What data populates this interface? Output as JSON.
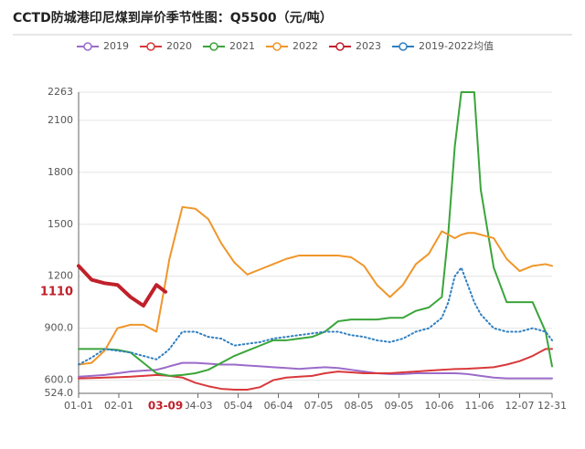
{
  "chart_data": {
    "type": "line",
    "title": "CCTD防城港印尼煤到岸价季节性图：Q5500（元/吨）",
    "x": [
      0,
      10,
      20,
      30,
      40,
      50,
      60,
      67,
      70,
      80,
      90,
      100,
      110,
      120,
      130,
      140,
      150,
      160,
      170,
      180,
      190,
      200,
      210,
      220,
      230,
      240,
      250,
      260,
      270,
      280,
      285,
      290,
      295,
      300,
      305,
      310,
      320,
      330,
      340,
      350,
      360,
      365
    ],
    "xlim": [
      0,
      365
    ],
    "xticks": [
      {
        "value": 0,
        "label": "01-01"
      },
      {
        "value": 31,
        "label": "02-01"
      },
      {
        "value": 92,
        "label": "04-03"
      },
      {
        "value": 123,
        "label": "05-04"
      },
      {
        "value": 154,
        "label": "06-04"
      },
      {
        "value": 185,
        "label": "07-05"
      },
      {
        "value": 216,
        "label": "08-05"
      },
      {
        "value": 247,
        "label": "09-05"
      },
      {
        "value": 278,
        "label": "10-06"
      },
      {
        "value": 309,
        "label": "11-06"
      },
      {
        "value": 340,
        "label": "12-07"
      },
      {
        "value": 365,
        "label": "12-31"
      }
    ],
    "ylim": [
      524,
      2263
    ],
    "yticks": [
      {
        "value": 524,
        "label": "524.0"
      },
      {
        "value": 600,
        "label": "600.0"
      },
      {
        "value": 900,
        "label": "900.0"
      },
      1200,
      1500,
      1800,
      2100,
      2263
    ],
    "grid": true,
    "legend": "top",
    "axis_pointer": {
      "x": {
        "value": 67,
        "label": "03-09"
      },
      "y": 1110,
      "color": "#c0202a"
    },
    "series": [
      {
        "name": "2019",
        "color": "#9b6bc9",
        "values": [
          620,
          625,
          630,
          640,
          650,
          655,
          660,
          673,
          680,
          700,
          700,
          695,
          690,
          690,
          685,
          680,
          675,
          670,
          665,
          670,
          675,
          670,
          660,
          650,
          640,
          635,
          635,
          640,
          640,
          640,
          640,
          640,
          638,
          635,
          630,
          625,
          615,
          610,
          610,
          610,
          610,
          610
        ]
      },
      {
        "name": "2020",
        "color": "#d9383a",
        "values": [
          610,
          612,
          615,
          617,
          620,
          625,
          630,
          627,
          625,
          615,
          585,
          565,
          550,
          545,
          545,
          560,
          600,
          615,
          620,
          625,
          640,
          650,
          645,
          640,
          640,
          640,
          645,
          650,
          655,
          660,
          662,
          664,
          665,
          666,
          668,
          670,
          675,
          690,
          710,
          740,
          780,
          780
        ]
      },
      {
        "name": "2021",
        "color": "#3aa53a",
        "values": [
          780,
          780,
          780,
          775,
          760,
          700,
          640,
          630,
          625,
          630,
          640,
          660,
          700,
          740,
          770,
          800,
          830,
          830,
          840,
          850,
          880,
          940,
          950,
          950,
          950,
          960,
          960,
          1000,
          1020,
          1080,
          1450,
          1950,
          2263,
          2263,
          2263,
          1700,
          1250,
          1050,
          1050,
          1050,
          880,
          680
        ]
      },
      {
        "name": "2022",
        "color": "#f0962a",
        "values": [
          690,
          700,
          770,
          900,
          920,
          920,
          880,
          1170,
          1300,
          1600,
          1590,
          1530,
          1390,
          1280,
          1210,
          1240,
          1270,
          1300,
          1320,
          1320,
          1320,
          1320,
          1310,
          1260,
          1150,
          1080,
          1150,
          1270,
          1330,
          1460,
          1440,
          1420,
          1440,
          1450,
          1450,
          1440,
          1420,
          1300,
          1230,
          1260,
          1270,
          1260
        ]
      },
      {
        "name": "2023",
        "color": "#c0202a",
        "line_width": 4,
        "values": [
          1260,
          1180,
          1160,
          1150,
          1080,
          1030,
          1150,
          1110,
          null,
          null,
          null,
          null,
          null,
          null,
          null,
          null,
          null,
          null,
          null,
          null,
          null,
          null,
          null,
          null,
          null,
          null,
          null,
          null,
          null,
          null,
          null,
          null,
          null,
          null,
          null,
          null,
          null,
          null,
          null,
          null,
          null,
          null
        ]
      },
      {
        "name": "2019-2022均值",
        "color": "#2f7fc1",
        "line_style": "dotted",
        "values": [
          690,
          730,
          780,
          770,
          760,
          740,
          720,
          760,
          780,
          880,
          880,
          850,
          840,
          800,
          810,
          820,
          840,
          850,
          860,
          870,
          880,
          880,
          860,
          850,
          830,
          820,
          840,
          880,
          900,
          960,
          1050,
          1200,
          1250,
          1150,
          1050,
          980,
          900,
          880,
          880,
          900,
          880,
          830
        ]
      }
    ]
  }
}
